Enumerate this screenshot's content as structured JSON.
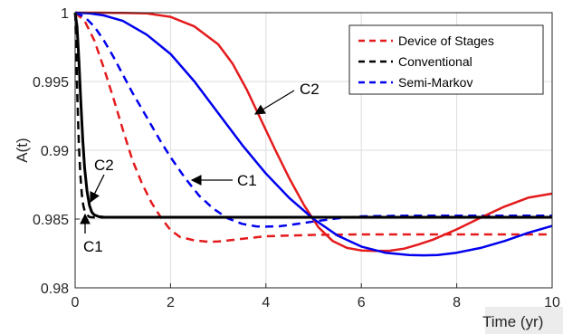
{
  "chart_data": {
    "type": "line",
    "title": "",
    "xlabel": "Time (yr)",
    "ylabel": "A(t)",
    "xlim": [
      0,
      10
    ],
    "ylim": [
      0.98,
      1
    ],
    "xticks": [
      0,
      2,
      4,
      6,
      8,
      10
    ],
    "yticks": [
      0.98,
      0.985,
      0.99,
      0.995,
      1
    ],
    "ytick_labels": [
      "0.98",
      "0.985",
      "0.99",
      "0.995",
      "1"
    ],
    "grid": true,
    "legend_position": "top-right",
    "legend": [
      {
        "label": "Device of Stages",
        "color": "#e41a1c",
        "style": "dashed"
      },
      {
        "label": "Conventional",
        "color": "#000000",
        "style": "dashed"
      },
      {
        "label": "Semi-Markov",
        "color": "#0000ee",
        "style": "dashed"
      }
    ],
    "series": [
      {
        "group": "C1",
        "method": "Device of Stages",
        "color": "#e41a1c",
        "style": "dashed",
        "x": [
          0,
          0.2,
          0.4,
          0.6,
          0.8,
          1.0,
          1.2,
          1.4,
          1.6,
          1.8,
          2.0,
          2.2,
          2.5,
          2.8,
          3.0,
          3.3,
          3.6,
          4.0,
          5.0,
          6.0,
          7.0,
          8.0,
          9.0,
          10.0
        ],
        "y": [
          1.0,
          0.9994,
          0.998,
          0.996,
          0.9938,
          0.9915,
          0.9893,
          0.9876,
          0.9862,
          0.9851,
          0.9842,
          0.9837,
          0.98345,
          0.98335,
          0.98337,
          0.98348,
          0.9836,
          0.98375,
          0.98385,
          0.98388,
          0.98388,
          0.98388,
          0.98388,
          0.98388
        ]
      },
      {
        "group": "C1",
        "method": "Semi-Markov",
        "color": "#0000ee",
        "style": "dashed",
        "x": [
          0,
          0.2,
          0.4,
          0.6,
          0.8,
          1.0,
          1.2,
          1.5,
          1.8,
          2.0,
          2.3,
          2.6,
          2.9,
          3.2,
          3.5,
          3.8,
          4.0,
          4.3,
          4.6,
          5.0,
          5.5,
          6.0,
          7.0,
          8.0,
          9.0,
          10.0
        ],
        "y": [
          1.0,
          0.9997,
          0.999,
          0.998,
          0.9968,
          0.9955,
          0.9942,
          0.9924,
          0.9906,
          0.9895,
          0.988,
          0.9867,
          0.98575,
          0.98505,
          0.98465,
          0.98447,
          0.98445,
          0.98448,
          0.98462,
          0.98482,
          0.98505,
          0.9852,
          0.98525,
          0.98525,
          0.98525,
          0.98525
        ]
      },
      {
        "group": "C1",
        "method": "Conventional",
        "color": "#000000",
        "style": "dashed",
        "x": [
          0,
          0.02,
          0.05,
          0.08,
          0.11,
          0.14,
          0.17,
          0.2,
          0.25,
          0.3,
          0.4,
          0.6,
          1.0,
          10.0
        ],
        "y": [
          1.0,
          0.9975,
          0.9935,
          0.9903,
          0.9882,
          0.9868,
          0.986,
          0.9856,
          0.9853,
          0.98515,
          0.98512,
          0.98512,
          0.98512,
          0.98512
        ]
      },
      {
        "group": "C2",
        "method": "Device of Stages",
        "color": "#e41a1c",
        "style": "solid",
        "x": [
          0,
          0.5,
          1.0,
          1.5,
          2.0,
          2.5,
          3.0,
          3.3,
          3.6,
          3.9,
          4.2,
          4.5,
          4.8,
          5.1,
          5.4,
          5.7,
          6.0,
          6.3,
          6.6,
          6.9,
          7.2,
          7.5,
          8.0,
          8.5,
          9.0,
          9.5,
          10.0
        ],
        "y": [
          1.0,
          1.0,
          0.99998,
          0.99995,
          0.9997,
          0.999,
          0.9977,
          0.9963,
          0.9944,
          0.9922,
          0.99,
          0.9879,
          0.986,
          0.9844,
          0.9834,
          0.9829,
          0.98272,
          0.98268,
          0.9827,
          0.98285,
          0.98315,
          0.9835,
          0.98425,
          0.9851,
          0.9859,
          0.98655,
          0.98685
        ]
      },
      {
        "group": "C2",
        "method": "Semi-Markov",
        "color": "#0000ee",
        "style": "solid",
        "x": [
          0,
          0.3,
          0.6,
          1.0,
          1.5,
          2.0,
          2.5,
          3.0,
          3.5,
          4.0,
          4.5,
          5.0,
          5.5,
          6.0,
          6.5,
          7.0,
          7.3,
          7.6,
          8.0,
          8.5,
          9.0,
          9.5,
          10.0
        ],
        "y": [
          1.0,
          0.99995,
          0.9998,
          0.9994,
          0.9984,
          0.997,
          0.995,
          0.9927,
          0.9904,
          0.9883,
          0.9865,
          0.985,
          0.9838,
          0.983,
          0.98255,
          0.98238,
          0.98236,
          0.98238,
          0.98255,
          0.9829,
          0.9834,
          0.984,
          0.9845
        ]
      },
      {
        "group": "C2",
        "method": "Conventional",
        "color": "#000000",
        "style": "solid",
        "x": [
          0,
          0.04,
          0.08,
          0.12,
          0.16,
          0.2,
          0.25,
          0.3,
          0.35,
          0.4,
          0.5,
          0.6,
          0.8,
          1.0,
          10.0
        ],
        "y": [
          1.0,
          0.999,
          0.9965,
          0.9935,
          0.9908,
          0.9887,
          0.987,
          0.986,
          0.9855,
          0.9853,
          0.98517,
          0.98514,
          0.98513,
          0.98513,
          0.98513
        ]
      }
    ],
    "annotations": [
      {
        "text": "C2",
        "arrow_to": [
          3.75,
          0.9923
        ]
      },
      {
        "text": "C1",
        "arrow_to": [
          2.45,
          0.9876
        ]
      },
      {
        "text": "C2",
        "arrow_to": [
          0.28,
          0.9853
        ]
      },
      {
        "text": "C1",
        "arrow_to": [
          0.22,
          0.9857
        ]
      }
    ]
  }
}
